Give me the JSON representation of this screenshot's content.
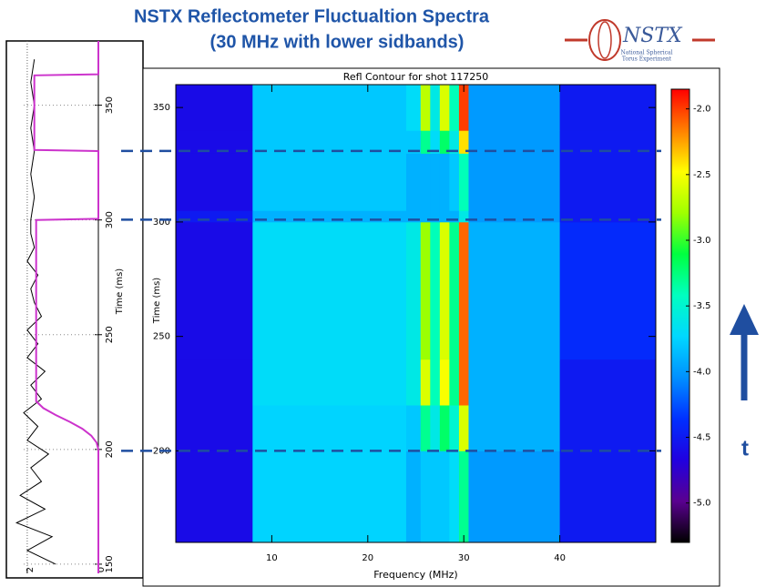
{
  "title": [
    "NSTX Reflectometer Fluctualtion Spectra",
    "(30 MHz with lower sidbands)"
  ],
  "logo": {
    "name": "NSTX",
    "lines": [
      "National Spherical",
      "Torus Experiment"
    ]
  },
  "annotation": "t",
  "chart_data": [
    {
      "type": "line",
      "orientation": "vertical",
      "ylabel": "Time (ms)",
      "ylim": [
        146,
        378
      ],
      "yticks": [
        150,
        200,
        250,
        300,
        350
      ],
      "xlim": [
        2.1,
        0
      ],
      "xticks": [
        2,
        0
      ],
      "grid": true,
      "series": [
        {
          "color": "#000000",
          "x": [
            150,
            156,
            162,
            168,
            174,
            180,
            186,
            192,
            198,
            204,
            210,
            216,
            222,
            228,
            234,
            240,
            246,
            252,
            258,
            264,
            270,
            276,
            282,
            288,
            294,
            300,
            310,
            320,
            330,
            340,
            350,
            360,
            370
          ],
          "values": [
            1.2,
            2.0,
            1.3,
            2.3,
            1.5,
            2.2,
            1.6,
            1.9,
            1.4,
            2.0,
            1.7,
            2.1,
            1.6,
            1.9,
            1.5,
            2.0,
            1.7,
            2.0,
            1.6,
            1.8,
            1.9,
            1.7,
            2.0,
            1.8,
            1.9,
            1.9,
            1.8,
            1.9,
            1.8,
            1.9,
            1.8,
            1.9,
            1.8
          ]
        },
        {
          "color": "#cc33cc",
          "x": [
            146,
            200,
            203,
            206,
            209,
            212,
            215,
            218,
            221,
            300,
            300.5,
            330,
            330.5,
            363,
            363.5,
            378
          ],
          "values": [
            0,
            0,
            0.05,
            0.2,
            0.45,
            0.8,
            1.2,
            1.55,
            1.75,
            1.75,
            0,
            0,
            1.8,
            1.8,
            0,
            0
          ]
        }
      ]
    },
    {
      "type": "heatmap",
      "title": "Refl Contour for shot 117250",
      "xlabel": "Frequency (MHz)",
      "ylabel": "Time (ms)",
      "xlim": [
        0,
        50
      ],
      "xticks": [
        10,
        20,
        30,
        40
      ],
      "ylim": [
        160,
        360
      ],
      "yticks": [
        200,
        250,
        300,
        350
      ],
      "x_edges": [
        0,
        8,
        24,
        25.5,
        26.5,
        27.5,
        28.5,
        29.5,
        30.5,
        40,
        50
      ],
      "y_edges": [
        160,
        200,
        220,
        240,
        300,
        305,
        330,
        340,
        360
      ],
      "z": [
        [
          -4.6,
          -3.75,
          -3.9,
          -3.8,
          -3.8,
          -3.8,
          -3.7,
          -3.3,
          -4.0,
          -4.5
        ],
        [
          -4.6,
          -3.75,
          -3.8,
          -3.3,
          -3.6,
          -3.2,
          -3.5,
          -2.6,
          -3.9,
          -4.5
        ],
        [
          -4.6,
          -3.7,
          -3.6,
          -2.6,
          -3.4,
          -2.5,
          -3.3,
          -2.1,
          -3.9,
          -4.5
        ],
        [
          -4.6,
          -3.7,
          -3.6,
          -2.8,
          -3.4,
          -2.6,
          -3.3,
          -2.1,
          -3.9,
          -4.4
        ],
        [
          -4.5,
          -3.9,
          -3.9,
          -3.9,
          -3.9,
          -3.9,
          -3.9,
          -3.6,
          -4.0,
          -4.5
        ],
        [
          -4.6,
          -3.8,
          -3.9,
          -3.9,
          -3.9,
          -3.9,
          -3.8,
          -3.4,
          -4.0,
          -4.5
        ],
        [
          -4.6,
          -3.8,
          -3.8,
          -3.3,
          -3.7,
          -3.2,
          -3.6,
          -2.4,
          -4.0,
          -4.5
        ],
        [
          -4.6,
          -3.8,
          -3.7,
          -2.7,
          -3.6,
          -2.6,
          -3.4,
          -2.0,
          -4.0,
          -4.5
        ]
      ],
      "clim": [
        -5.3,
        -1.85
      ],
      "cticks": [
        {
          "value": -2,
          "label": "-2.0"
        },
        {
          "value": -2.5,
          "label": "-2.5"
        },
        {
          "value": -3,
          "label": "-3.0"
        },
        {
          "value": -3.5,
          "label": "-3.5"
        },
        {
          "value": -4,
          "label": "-4.0"
        },
        {
          "value": -4.5,
          "label": "-4.5"
        },
        {
          "value": -5,
          "label": "-5.0"
        }
      ],
      "colorscale": [
        "#000000",
        "#5a0090",
        "#2000e0",
        "#0030ff",
        "#0090ff",
        "#00d8ff",
        "#00ffc0",
        "#00ff40",
        "#a0ff00",
        "#ffff00",
        "#ff8000",
        "#ff0000"
      ],
      "hlines": [
        200,
        301,
        331
      ],
      "hline_color": "#1f4ea0"
    }
  ]
}
